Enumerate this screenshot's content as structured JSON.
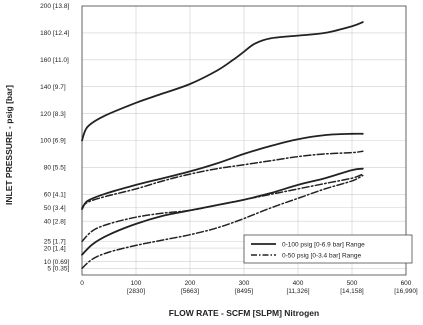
{
  "chart_data": {
    "type": "line",
    "xlabel": "FLOW RATE - SCFM [SLPM] Nitrogen",
    "ylabel": "INLET PRESSURE - psig [bar]",
    "xlim": [
      0,
      600
    ],
    "ylim": [
      0,
      200
    ],
    "grid": true,
    "legend_placement": "bottom-right",
    "x_ticks": [
      {
        "value": 0,
        "label": "0",
        "sub": ""
      },
      {
        "value": 100,
        "label": "100",
        "sub": "[2830]"
      },
      {
        "value": 200,
        "label": "200",
        "sub": "[5663]"
      },
      {
        "value": 300,
        "label": "300",
        "sub": "[8495]"
      },
      {
        "value": 400,
        "label": "400",
        "sub": "[11,326]"
      },
      {
        "value": 500,
        "label": "500",
        "sub": "[14,158]"
      },
      {
        "value": 600,
        "label": "600",
        "sub": "[16,990]"
      }
    ],
    "y_ticks": [
      {
        "value": 200,
        "label": "200",
        "sub": "[13.8]"
      },
      {
        "value": 180,
        "label": "180",
        "sub": "[12.4]"
      },
      {
        "value": 160,
        "label": "160",
        "sub": "[11.0]"
      },
      {
        "value": 140,
        "label": "140",
        "sub": "[9.7]"
      },
      {
        "value": 120,
        "label": "120",
        "sub": "[8.3]"
      },
      {
        "value": 100,
        "label": "100",
        "sub": "[6.9]"
      },
      {
        "value": 80,
        "label": "80",
        "sub": "[5.5]"
      },
      {
        "value": 60,
        "label": "60",
        "sub": "[4.1]"
      },
      {
        "value": 50,
        "label": "50",
        "sub": "[3.4]"
      },
      {
        "value": 40,
        "label": "40",
        "sub": "[2.8]"
      },
      {
        "value": 25,
        "label": "25",
        "sub": "[1.7]"
      },
      {
        "value": 20,
        "label": "20",
        "sub": "[1.4]"
      },
      {
        "value": 10,
        "label": "10",
        "sub": "[0.69]"
      },
      {
        "value": 5,
        "label": "5",
        "sub": "[0.35]"
      }
    ],
    "legend": [
      {
        "style": "solid",
        "label": "0-100 psig [0-6.9 bar] Range"
      },
      {
        "style": "dashdot",
        "label": "0-50 psig [0-3.4 bar] Range"
      }
    ],
    "series": [
      {
        "style": "solid",
        "x": [
          0,
          10,
          40,
          100,
          150,
          200,
          250,
          280,
          300,
          320,
          350,
          400,
          450,
          500,
          520
        ],
        "y": [
          100,
          110,
          118,
          128,
          135,
          142,
          152,
          160,
          166,
          172,
          176,
          178,
          180,
          185,
          188
        ]
      },
      {
        "style": "solid",
        "x": [
          0,
          10,
          40,
          100,
          150,
          200,
          250,
          300,
          350,
          400,
          450,
          500,
          520
        ],
        "y": [
          49,
          55,
          60,
          67,
          72,
          77,
          83,
          90,
          96,
          101,
          104,
          105,
          105
        ]
      },
      {
        "style": "solid",
        "x": [
          0,
          20,
          50,
          100,
          150,
          200,
          250,
          300,
          350,
          400,
          450,
          500,
          520
        ],
        "y": [
          15,
          23,
          30,
          38,
          44,
          48,
          52,
          56,
          61,
          67,
          72,
          78,
          79
        ]
      },
      {
        "style": "dashdot",
        "x": [
          0,
          10,
          40,
          100,
          150,
          200,
          250,
          300,
          350,
          400,
          450,
          500,
          520
        ],
        "y": [
          50,
          54,
          58,
          64,
          70,
          75,
          79,
          82,
          85,
          88,
          90,
          91,
          92
        ]
      },
      {
        "style": "dashdot",
        "x": [
          0,
          20,
          50,
          100,
          150,
          200,
          250,
          300,
          350,
          400,
          450,
          500,
          520
        ],
        "y": [
          25,
          33,
          38,
          43,
          46,
          48,
          52,
          56,
          60,
          64,
          68,
          72,
          75
        ]
      },
      {
        "style": "dashdot",
        "x": [
          0,
          20,
          50,
          100,
          150,
          200,
          250,
          300,
          350,
          400,
          450,
          500,
          520
        ],
        "y": [
          5,
          12,
          17,
          22,
          26,
          30,
          35,
          42,
          50,
          57,
          64,
          70,
          74
        ]
      }
    ]
  }
}
